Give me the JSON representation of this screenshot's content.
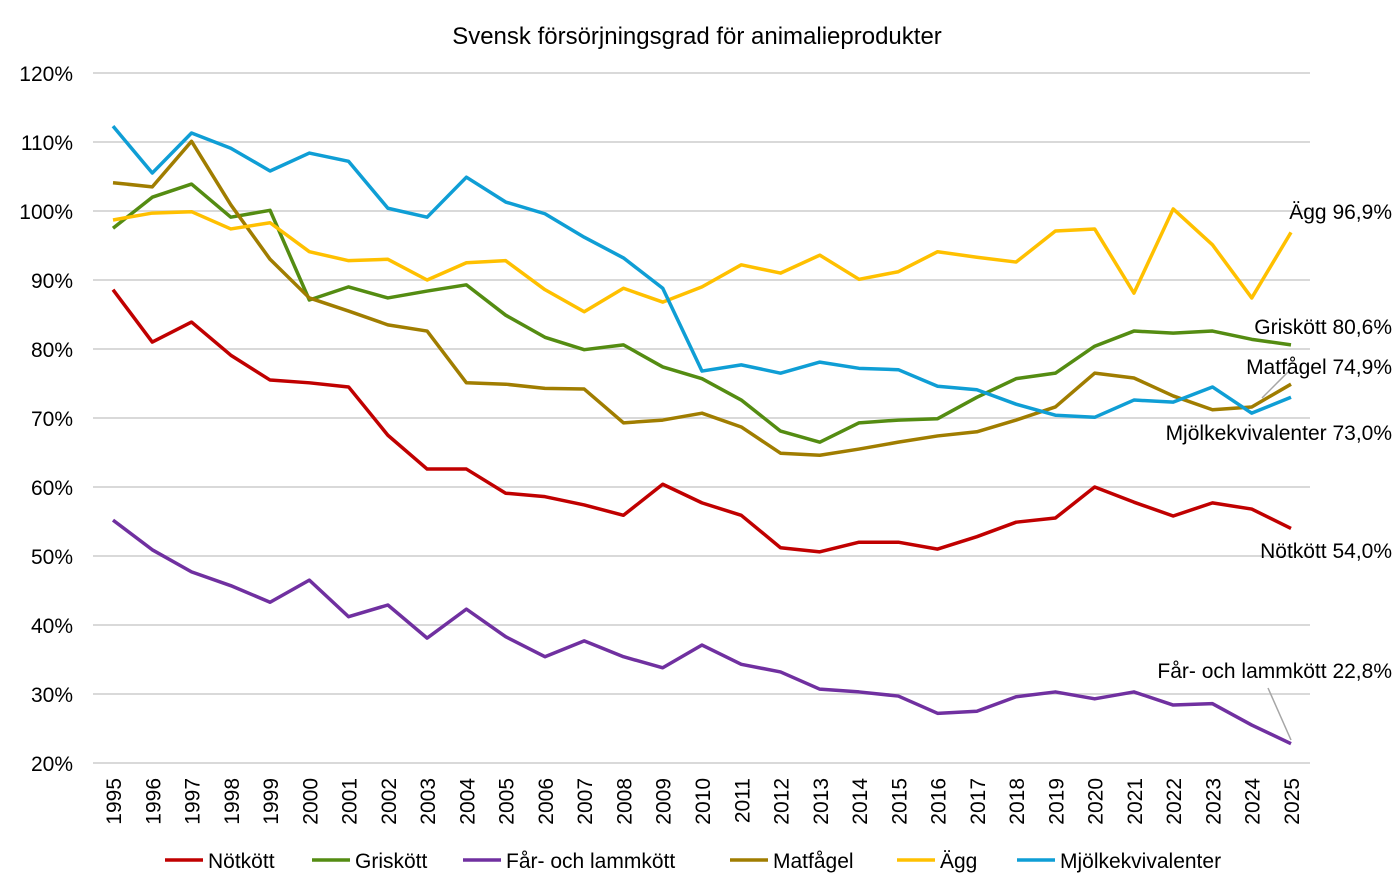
{
  "chart_data": {
    "type": "line",
    "title": "Svensk försörjningsgrad för animalieprodukter",
    "xlabel": "",
    "ylabel": "",
    "ylim": [
      20,
      120
    ],
    "yticks": [
      "20%",
      "30%",
      "40%",
      "50%",
      "60%",
      "70%",
      "80%",
      "90%",
      "100%",
      "110%",
      "120%"
    ],
    "grid": true,
    "legend": "bottom",
    "x": [
      1995,
      1996,
      1997,
      1998,
      1999,
      2000,
      2001,
      2002,
      2003,
      2004,
      2005,
      2006,
      2007,
      2008,
      2009,
      2010,
      2011,
      2012,
      2013,
      2014,
      2015,
      2016,
      2017,
      2018,
      2019,
      2020,
      2021,
      2022,
      2023,
      2024,
      2025
    ],
    "series": [
      {
        "name": "Nötkött",
        "color": "#C00000",
        "end_label": "Nötkött 54,0%",
        "values": [
          88.6,
          81.0,
          83.9,
          79.1,
          75.5,
          75.1,
          74.5,
          67.5,
          62.6,
          62.6,
          59.1,
          58.6,
          57.4,
          55.9,
          60.4,
          57.7,
          55.9,
          51.2,
          50.6,
          52.0,
          52.0,
          51.0,
          52.8,
          54.9,
          55.5,
          60.0,
          57.8,
          55.8,
          57.7,
          56.8,
          54.0
        ]
      },
      {
        "name": "Griskött",
        "color": "#548C12",
        "end_label": "Griskött 80,6%",
        "values": [
          97.5,
          102.0,
          103.9,
          99.1,
          100.1,
          87.1,
          89.0,
          87.4,
          88.4,
          89.3,
          84.9,
          81.7,
          79.9,
          80.6,
          77.4,
          75.7,
          72.6,
          68.1,
          66.5,
          69.3,
          69.7,
          69.9,
          73.0,
          75.7,
          76.5,
          80.4,
          82.6,
          82.3,
          82.6,
          81.4,
          80.6
        ]
      },
      {
        "name": "Får- och lammkött",
        "color": "#7030A0",
        "end_label": "Får- och lammkött 22,8%",
        "values": [
          55.2,
          50.9,
          47.7,
          45.7,
          43.3,
          46.5,
          41.2,
          42.9,
          38.1,
          42.3,
          38.3,
          35.4,
          37.7,
          35.4,
          33.8,
          37.1,
          34.3,
          33.2,
          30.7,
          30.3,
          29.7,
          27.2,
          27.5,
          29.6,
          30.3,
          29.3,
          30.3,
          28.4,
          28.6,
          25.5,
          22.8
        ]
      },
      {
        "name": "Matfågel",
        "color": "#A07D00",
        "end_label": "Matfågel 74,9%",
        "values": [
          104.1,
          103.5,
          110.1,
          100.9,
          93.0,
          87.4,
          85.5,
          83.5,
          82.6,
          75.1,
          74.9,
          74.3,
          74.2,
          69.3,
          69.7,
          70.7,
          68.7,
          64.9,
          64.6,
          65.5,
          66.5,
          67.4,
          68.0,
          69.7,
          71.6,
          76.5,
          75.8,
          73.2,
          71.2,
          71.6,
          74.9
        ]
      },
      {
        "name": "Ägg",
        "color": "#FFC000",
        "end_label": "Ägg 96,9%",
        "values": [
          98.7,
          99.7,
          99.9,
          97.4,
          98.3,
          94.1,
          92.8,
          93.0,
          90.0,
          92.5,
          92.8,
          88.6,
          85.4,
          88.8,
          86.8,
          89.0,
          92.2,
          91.0,
          93.6,
          90.1,
          91.2,
          94.1,
          93.3,
          92.6,
          97.1,
          97.4,
          88.1,
          100.3,
          95.1,
          87.4,
          96.9
        ]
      },
      {
        "name": "Mjölkekvivalenter",
        "color": "#0F9ED5",
        "end_label": "Mjölkekvivalenter 73,0%",
        "values": [
          112.3,
          105.5,
          111.3,
          109.1,
          105.8,
          108.4,
          107.2,
          100.4,
          99.1,
          104.9,
          101.3,
          99.6,
          96.2,
          93.2,
          88.8,
          76.8,
          77.7,
          76.5,
          78.1,
          77.2,
          77.0,
          74.6,
          74.1,
          72.0,
          70.4,
          70.1,
          72.6,
          72.3,
          74.5,
          70.7,
          73.0
        ]
      }
    ]
  }
}
